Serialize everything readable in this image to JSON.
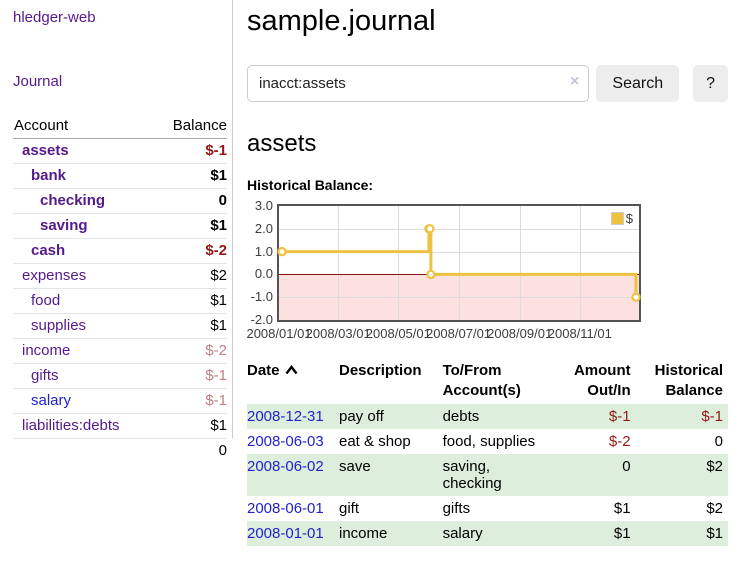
{
  "app": {
    "title": "hledger-web"
  },
  "sidebar": {
    "journal_label": "Journal",
    "accounts_table": {
      "account_header": "Account",
      "balance_header": "Balance",
      "rows": [
        {
          "name": "assets",
          "depth": 1,
          "bold": true,
          "blue": false,
          "balance": "$-1",
          "balance_class": "neg-strong"
        },
        {
          "name": "bank",
          "depth": 2,
          "bold": true,
          "blue": false,
          "balance": "$1",
          "balance_class": ""
        },
        {
          "name": "checking",
          "depth": 3,
          "bold": true,
          "blue": false,
          "balance": "0",
          "balance_class": ""
        },
        {
          "name": "saving",
          "depth": 3,
          "bold": true,
          "blue": false,
          "balance": "$1",
          "balance_class": ""
        },
        {
          "name": "cash",
          "depth": 2,
          "bold": true,
          "blue": false,
          "balance": "$-2",
          "balance_class": "neg-strong"
        },
        {
          "name": "expenses",
          "depth": 1,
          "bold": false,
          "blue": false,
          "balance": "$2",
          "balance_class": ""
        },
        {
          "name": "food",
          "depth": 2,
          "bold": false,
          "blue": false,
          "balance": "$1",
          "balance_class": ""
        },
        {
          "name": "supplies",
          "depth": 2,
          "bold": false,
          "blue": false,
          "balance": "$1",
          "balance_class": ""
        },
        {
          "name": "income",
          "depth": 1,
          "bold": false,
          "blue": false,
          "balance": "$-2",
          "balance_class": "neg-dim"
        },
        {
          "name": "gifts",
          "depth": 2,
          "bold": false,
          "blue": false,
          "balance": "$-1",
          "balance_class": "neg-dim"
        },
        {
          "name": "salary",
          "depth": 2,
          "bold": false,
          "blue": true,
          "balance": "$-1",
          "balance_class": "neg-dim"
        },
        {
          "name": "liabilities:debts",
          "depth": 1,
          "bold": false,
          "blue": false,
          "balance": "$1",
          "balance_class": ""
        }
      ],
      "total": "0"
    }
  },
  "header": {
    "title": "sample.journal"
  },
  "search": {
    "value": "inacct:assets",
    "clear_icon": "×",
    "search_label": "Search",
    "help_label": "?"
  },
  "main": {
    "account_heading": "assets",
    "chart_label": "Historical Balance:"
  },
  "chart_data": {
    "type": "line",
    "style": "step",
    "title": "Historical Balance",
    "series": [
      {
        "name": "$",
        "color": "#edc240",
        "points": [
          [
            "2008-01-01",
            1
          ],
          [
            "2008-06-01",
            2
          ],
          [
            "2008-06-02",
            2
          ],
          [
            "2008-06-03",
            0
          ],
          [
            "2008-12-31",
            -1
          ]
        ]
      }
    ],
    "x_range": [
      "2008-01-01",
      "2008-12-31"
    ],
    "ylim": [
      -2,
      3
    ],
    "y_ticks": [
      3.0,
      2.0,
      1.0,
      0.0,
      -1.0,
      -2.0
    ],
    "x_tick_labels": [
      "2008/01/01",
      "2008/03/01",
      "2008/05/01",
      "2008/07/01",
      "2008/09/01",
      "2008/11/01"
    ],
    "grid": true,
    "legend_position": "top-right",
    "zero_line_color": "#8b1111",
    "negative_region": true
  },
  "register": {
    "headers": {
      "date": "Date",
      "description": "Description",
      "accounts": "To/From Account(s)",
      "amount": "Amount Out/In",
      "balance": "Historical Balance"
    },
    "rows": [
      {
        "date": "2008-12-31",
        "description": "pay off",
        "accounts": "debts",
        "amount": "$-1",
        "amount_class": "neg-strong",
        "balance": "$-1",
        "balance_class": "neg-strong"
      },
      {
        "date": "2008-06-03",
        "description": "eat & shop",
        "accounts": "food, supplies",
        "amount": "$-2",
        "amount_class": "neg-strong",
        "balance": "0",
        "balance_class": ""
      },
      {
        "date": "2008-06-02",
        "description": "save",
        "accounts": "saving, checking",
        "amount": "0",
        "amount_class": "",
        "balance": "$2",
        "balance_class": ""
      },
      {
        "date": "2008-06-01",
        "description": "gift",
        "accounts": "gifts",
        "amount": "$1",
        "amount_class": "",
        "balance": "$2",
        "balance_class": ""
      },
      {
        "date": "2008-01-01",
        "description": "income",
        "accounts": "salary",
        "amount": "$1",
        "amount_class": "",
        "balance": "$1",
        "balance_class": ""
      }
    ]
  },
  "colors": {
    "link_purple": "#551a8b",
    "link_blue": "#2222cc",
    "negative_strong": "#941818",
    "negative_dim": "#c08080",
    "row_green": "#ddeedd",
    "series_gold": "#edc240",
    "zero_line": "#8b1111",
    "plot_border": "#545454"
  }
}
